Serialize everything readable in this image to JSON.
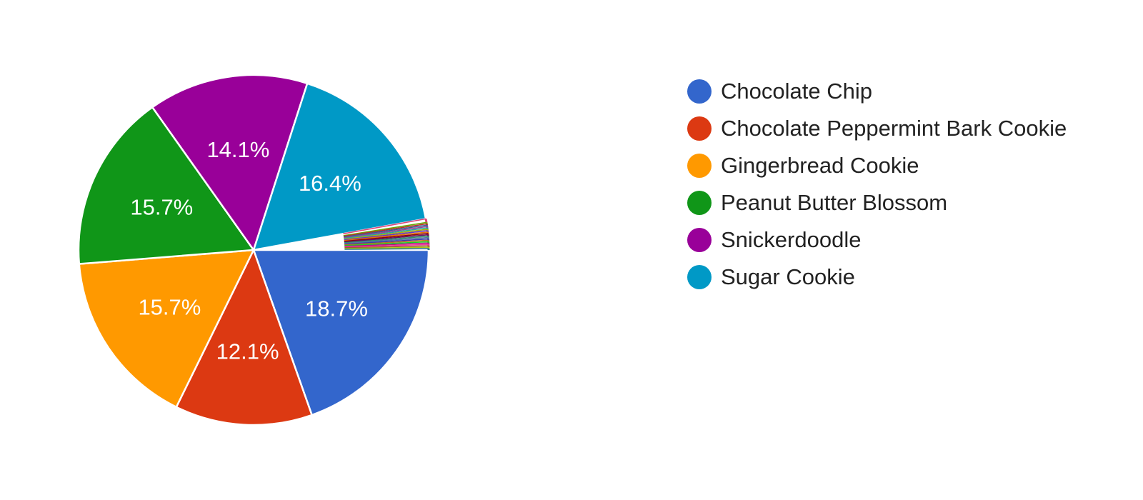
{
  "chart_data": {
    "type": "pie",
    "series": [
      {
        "name": "Chocolate Chip",
        "value": 18.7,
        "label": "18.7%",
        "color": "#3366cc"
      },
      {
        "name": "Chocolate Peppermint Bark Cookie",
        "value": 12.1,
        "label": "12.1%",
        "color": "#dc3912"
      },
      {
        "name": "Gingerbread Cookie",
        "value": 15.7,
        "label": "15.7%",
        "color": "#ff9900"
      },
      {
        "name": "Peanut Butter Blossom",
        "value": 15.7,
        "label": "15.7%",
        "color": "#109618"
      },
      {
        "name": "Snickerdoodle",
        "value": 14.1,
        "label": "14.1%",
        "color": "#990099"
      },
      {
        "name": "Sugar Cookie",
        "value": 16.4,
        "label": "16.4%",
        "color": "#0099c6"
      }
    ],
    "minor_slices": {
      "values": [
        0.32,
        0.12,
        0.12,
        0.12,
        0.12,
        0.12,
        0.12,
        0.12,
        0.12,
        0.12,
        0.12,
        0.12,
        0.12,
        0.12,
        0.12,
        0.12,
        0.12,
        0.12,
        0.12,
        0.12,
        0.12
      ],
      "colors": [
        "#dd4477",
        "#66aa00",
        "#b82e2e",
        "#316395",
        "#994499",
        "#22aa99",
        "#aaaa11",
        "#6633cc",
        "#e67300",
        "#8b0707",
        "#651067",
        "#329262",
        "#5574a6",
        "#3b3eac",
        "#b77322",
        "#16d620",
        "#b91383",
        "#f4359e",
        "#9c5935",
        "#a9c413",
        "#2a778d"
      ]
    },
    "legend_position": "right"
  }
}
